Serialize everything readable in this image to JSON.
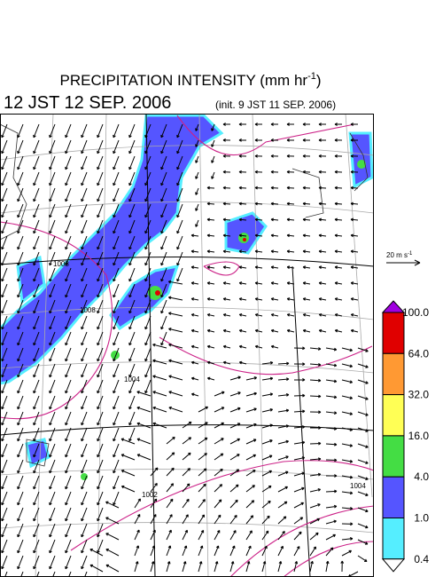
{
  "header": {
    "title": "PRECIPITATION INTENSITY (mm hr",
    "title_sup": "-1",
    "title_close": ")",
    "valid_time": "12 JST 12 SEP. 2006",
    "init_time": "(init. 9 JST 11 SEP. 2006)"
  },
  "wind_scale": {
    "label": "20 m s",
    "sup": "-1"
  },
  "colorbar": {
    "labels": [
      "100.0",
      "64.0",
      "32.0",
      "16.0",
      "4.0",
      "1.0",
      "0.4"
    ],
    "colors": [
      "#a000e0",
      "#e00000",
      "#ff9933",
      "#ffff55",
      "#44dd44",
      "#5555ff",
      "#55eeff",
      "#ffffff"
    ]
  },
  "isobar_labels": [
    "1008",
    "1004",
    "1002",
    "1004",
    "1008"
  ]
}
